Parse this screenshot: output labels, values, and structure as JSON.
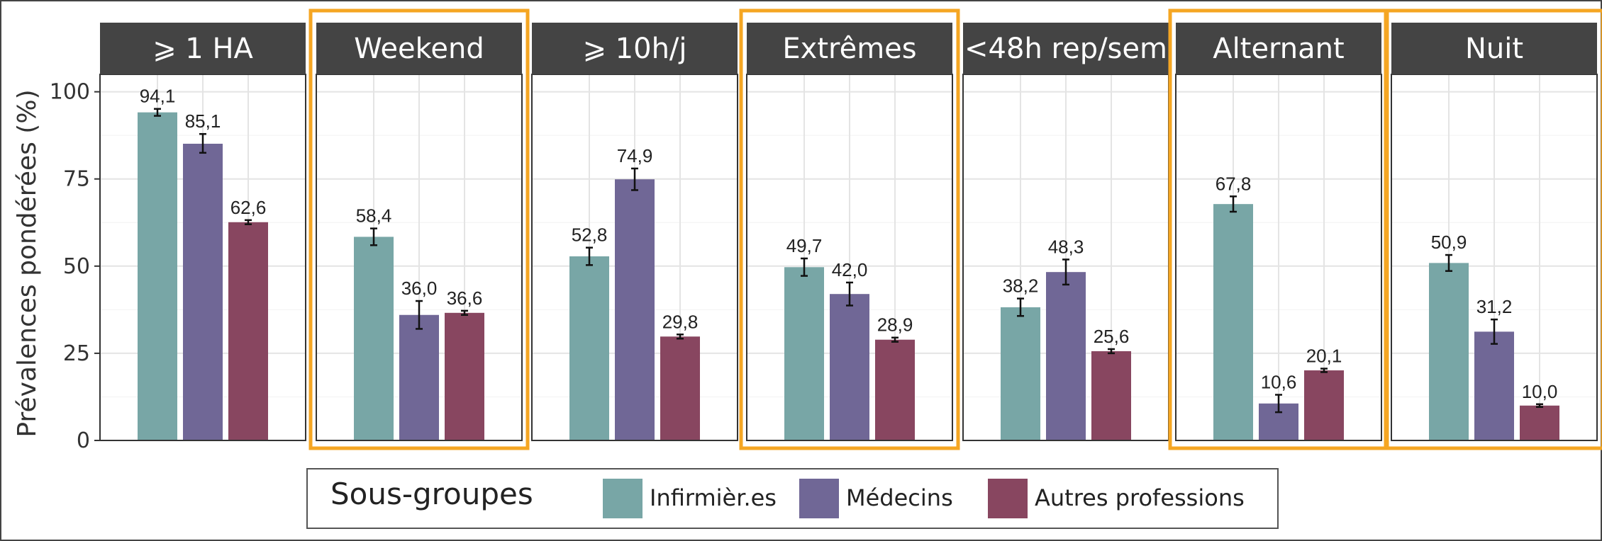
{
  "chart_data": {
    "type": "bar",
    "ylabel": "Prévalences pondérées (%)",
    "ylim": [
      0,
      105
    ],
    "yticks": [
      "0",
      "25",
      "50",
      "75",
      "100"
    ],
    "grid": true,
    "legend": {
      "title": "Sous-groupes",
      "placement": "bottom",
      "entries": [
        "Infirmièr.es",
        "Médecins",
        "Autres professions"
      ]
    },
    "colors": {
      "Infirmièr.es": "#78a6a6",
      "Médecins": "#706796",
      "Autres professions": "#884660",
      "strip": "#444444",
      "highlight": "#f5a623"
    },
    "panels": [
      {
        "label": "⩾ 1 HA",
        "highlighted": false,
        "values": [
          94.1,
          85.1,
          62.6
        ],
        "value_labels": [
          "94,1",
          "85,1",
          "62,6"
        ],
        "ci_low": [
          93.1,
          82.5,
          62.0
        ],
        "ci_high": [
          95.1,
          87.9,
          63.2
        ]
      },
      {
        "label": "Weekend",
        "highlighted": true,
        "values": [
          58.4,
          36.0,
          36.6
        ],
        "value_labels": [
          "58,4",
          "36,0",
          "36,6"
        ],
        "ci_low": [
          56.0,
          32.0,
          36.0
        ],
        "ci_high": [
          60.8,
          40.0,
          37.2
        ]
      },
      {
        "label": "⩾ 10h/j",
        "highlighted": false,
        "values": [
          52.8,
          74.9,
          29.8
        ],
        "value_labels": [
          "52,8",
          "74,9",
          "29,8"
        ],
        "ci_low": [
          50.3,
          71.8,
          29.2
        ],
        "ci_high": [
          55.3,
          78.0,
          30.4
        ]
      },
      {
        "label": "Extrêmes",
        "highlighted": true,
        "values": [
          49.7,
          42.0,
          28.9
        ],
        "value_labels": [
          "49,7",
          "42,0",
          "28,9"
        ],
        "ci_low": [
          47.2,
          38.7,
          28.3
        ],
        "ci_high": [
          52.2,
          45.3,
          29.5
        ]
      },
      {
        "label": "<48h rep/sem",
        "highlighted": false,
        "values": [
          38.2,
          48.3,
          25.6
        ],
        "value_labels": [
          "38,2",
          "48,3",
          "25,6"
        ],
        "ci_low": [
          35.7,
          44.7,
          25.0
        ],
        "ci_high": [
          40.7,
          51.9,
          26.2
        ]
      },
      {
        "label": "Alternant",
        "highlighted": true,
        "values": [
          67.8,
          10.6,
          20.1
        ],
        "value_labels": [
          "67,8",
          "10,6",
          "20,1"
        ],
        "ci_low": [
          65.6,
          8.1,
          19.6
        ],
        "ci_high": [
          70.0,
          13.1,
          20.6
        ]
      },
      {
        "label": "Nuit",
        "highlighted": true,
        "values": [
          50.9,
          31.2,
          10.0
        ],
        "value_labels": [
          "50,9",
          "31,2",
          "10,0"
        ],
        "ci_low": [
          48.6,
          27.7,
          9.6
        ],
        "ci_high": [
          53.2,
          34.7,
          10.4
        ]
      }
    ]
  }
}
